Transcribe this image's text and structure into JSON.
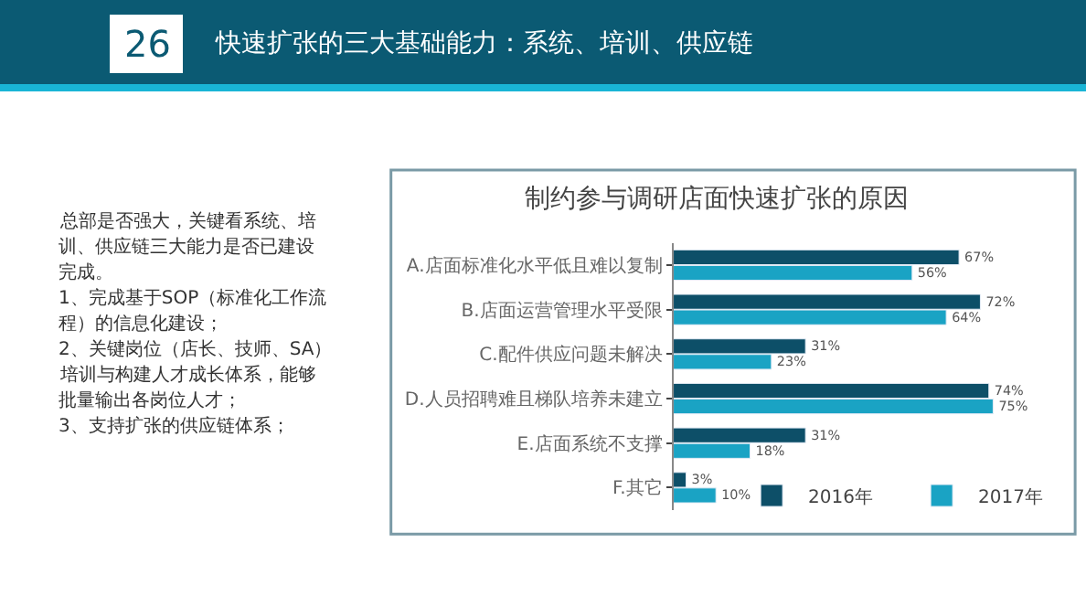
{
  "chart_data": {
    "type": "bar",
    "orientation": "horizontal",
    "title": "制约参与调研店面快速扩张的原因",
    "categories": [
      "A.店面标准化水平低且难以复制",
      "B.店面运营管理水平受限",
      "C.配件供应问题未解决",
      "D.人员招聘难且梯队培养未建立",
      "E.店面系统不支撑",
      "F.其它"
    ],
    "series": [
      {
        "name": "2016年",
        "color": "#0d4f68",
        "values": [
          67,
          72,
          31,
          74,
          31,
          3
        ],
        "value_labels": [
          "67%",
          "72%",
          "31%",
          "74%",
          "31%",
          "3%"
        ]
      },
      {
        "name": "2017年",
        "color": "#1aa3c4",
        "values": [
          56,
          64,
          23,
          75,
          18,
          10
        ],
        "value_labels": [
          "56%",
          "64%",
          "23%",
          "75%",
          "18%",
          "10%"
        ]
      }
    ],
    "tick_labels": "y",
    "legend": "bottom right",
    "annotations": [
      "26",
      "快速扩张的三大基础能力：系统、培训、供应链",
      "总部是否强大，关键看系统、培",
      "训、供应链三大能力是否已建设",
      "完成。",
      "1、完成基于SOP（标准化工作流",
      "程）的信息化建设；",
      "2、关键岗位（店长、技师、SA）",
      "培训与构建人才成长体系，能够",
      "批量输出各岗位人才；",
      "3、支持扩张的供应链体系；"
    ]
  }
}
